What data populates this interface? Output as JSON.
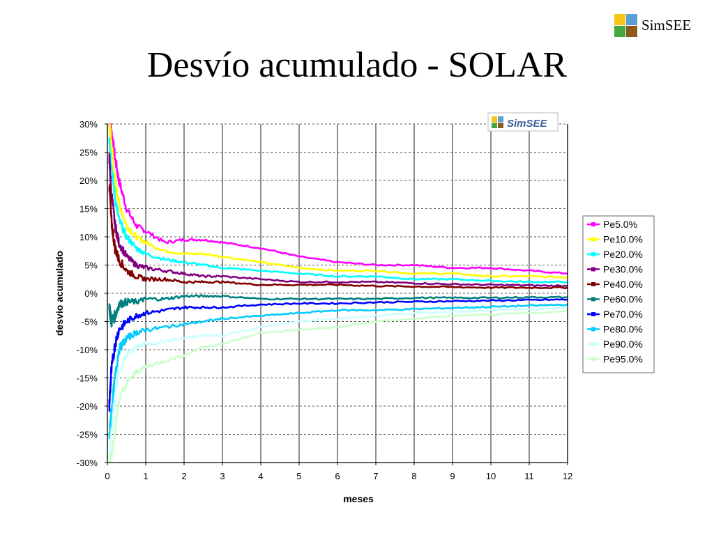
{
  "slide": {
    "title": "Desvío acumulado - SOLAR",
    "logo_text": "SimSEE",
    "logo_colors": [
      "#f5c518",
      "#5aa0d8",
      "#46a83c",
      "#8c5a1e"
    ]
  },
  "chart_data": {
    "type": "line",
    "title": "",
    "xlabel": "meses",
    "ylabel": "desvio acumulado",
    "xlim": [
      0,
      12
    ],
    "ylim": [
      -30,
      30
    ],
    "x_ticks": [
      0,
      1,
      2,
      3,
      4,
      5,
      6,
      7,
      8,
      9,
      10,
      11,
      12
    ],
    "y_ticks": [
      -30,
      -25,
      -20,
      -15,
      -10,
      -5,
      0,
      5,
      10,
      15,
      20,
      25,
      30
    ],
    "y_tick_labels": [
      "-30%",
      "-25%",
      "-20%",
      "-15%",
      "-10%",
      "-5%",
      "0%",
      "5%",
      "10%",
      "15%",
      "20%",
      "25%",
      "30%"
    ],
    "grid": true,
    "legend_position": "right",
    "watermark": "SimSEE",
    "x": [
      0.05,
      0.1,
      0.2,
      0.3,
      0.5,
      0.75,
      1,
      1.5,
      2,
      2.5,
      3,
      4,
      5,
      6,
      7,
      8,
      9,
      10,
      11,
      12
    ],
    "series": [
      {
        "name": "Pe5.0%",
        "color": "#ff00ff",
        "values": [
          30,
          29,
          24,
          20,
          15,
          12,
          11,
          9,
          9.5,
          9.5,
          9,
          8,
          6.5,
          5.5,
          5,
          5,
          4.5,
          4.5,
          4,
          3.5
        ]
      },
      {
        "name": "Pe10.0%",
        "color": "#ffff00",
        "values": [
          30,
          27,
          20,
          16,
          12,
          10,
          9,
          7.5,
          7,
          7,
          6.5,
          5.5,
          4.5,
          4,
          4,
          3.5,
          3.5,
          3,
          3,
          2.8
        ]
      },
      {
        "name": "Pe20.0%",
        "color": "#00ffff",
        "values": [
          28,
          23,
          17,
          13,
          10,
          8,
          7,
          6,
          5.5,
          5,
          4.5,
          4,
          3.5,
          3,
          3,
          2.5,
          2.5,
          2.2,
          2,
          2
        ]
      },
      {
        "name": "Pe30.0%",
        "color": "#800080",
        "values": [
          24,
          18,
          12,
          9,
          6.5,
          5,
          4.5,
          4,
          3.5,
          3,
          3,
          2.5,
          2,
          2,
          2,
          1.8,
          1.6,
          1.5,
          1.4,
          1.3
        ]
      },
      {
        "name": "Pe40.0%",
        "color": "#800000",
        "values": [
          20,
          13,
          8,
          6,
          4,
          3,
          2.5,
          2.5,
          2,
          2,
          2,
          1.5,
          1.5,
          1.5,
          1.3,
          1.2,
          1.1,
          1,
          1,
          1
        ]
      },
      {
        "name": "Pe60.0%",
        "color": "#008080",
        "values": [
          -2,
          -5,
          -4,
          -2,
          -1.5,
          -1.5,
          -1,
          -1,
          -0.5,
          -0.5,
          -0.5,
          -1,
          -1,
          -1,
          -1,
          -0.8,
          -0.8,
          -0.8,
          -0.7,
          -0.7
        ]
      },
      {
        "name": "Pe70.0%",
        "color": "#0000ff",
        "values": [
          -20,
          -14,
          -9,
          -6.5,
          -5,
          -4,
          -3.5,
          -3,
          -2.5,
          -2.5,
          -2.5,
          -2,
          -1.8,
          -1.8,
          -1.6,
          -1.5,
          -1.4,
          -1.3,
          -1.2,
          -1.1
        ]
      },
      {
        "name": "Pe80.0%",
        "color": "#00ccff",
        "values": [
          -26,
          -21,
          -15,
          -10,
          -8,
          -7,
          -6.5,
          -6,
          -5.5,
          -5,
          -4.5,
          -4,
          -3.5,
          -3,
          -3,
          -2.8,
          -2.6,
          -2.4,
          -2.2,
          -2
        ]
      },
      {
        "name": "Pe90.0%",
        "color": "#ccffff",
        "values": [
          -30,
          -25,
          -18,
          -14,
          -11,
          -9.5,
          -9,
          -8.5,
          -8,
          -7.5,
          -7.5,
          -6,
          -5,
          -4.5,
          -4,
          -3.5,
          -3.3,
          -3,
          -2.8,
          -2.6
        ]
      },
      {
        "name": "Pe95.0%",
        "color": "#ccffcc",
        "values": [
          -30,
          -29,
          -24,
          -19,
          -16,
          -14,
          -13,
          -12,
          -11,
          -9.5,
          -9,
          -7,
          -6.5,
          -6,
          -5,
          -4.5,
          -4,
          -3.8,
          -3.5,
          -3.2
        ]
      }
    ]
  }
}
